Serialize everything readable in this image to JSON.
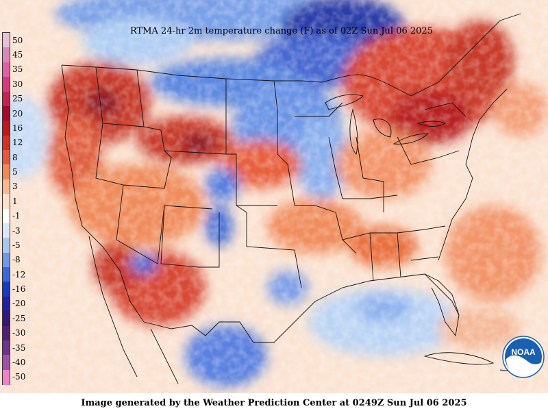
{
  "title": "RTMA 24-hr 2m temperature change (F) as of 02Z Sun Jul 06 2025",
  "footer": "Image generated by the Weather Prediction Center at 0249Z Sun Jul 06 2025",
  "logo_text": "NOAA",
  "legend": {
    "labels": [
      "50",
      "45",
      "35",
      "30",
      "25",
      "20",
      "16",
      "12",
      "8",
      "5",
      "3",
      "1",
      "-1",
      "-3",
      "-5",
      "-8",
      "-12",
      "-16",
      "-20",
      "-25",
      "-30",
      "-35",
      "-40",
      "-50"
    ],
    "colors": [
      "#e8c0d8",
      "#d888c0",
      "#e060a8",
      "#d83880",
      "#c82050",
      "#a80828",
      "#c01818",
      "#d83020",
      "#e85838",
      "#f08858",
      "#f8b890",
      "#fde0c8",
      "#ffffff",
      "#d8e8f8",
      "#a8c8f0",
      "#7098e8",
      "#3868e0",
      "#1838c8",
      "#2020a0",
      "#301878",
      "#502070",
      "#703090",
      "#a050a8",
      "#f080c8"
    ]
  },
  "colors": {
    "warm_strong": "#b82020",
    "warm": "#e8603c",
    "warm_light": "#f4a07a",
    "cool_light": "#a8c8f0",
    "cool": "#4070e0",
    "cool_strong": "#1838b8",
    "noaa_blue": "#1a5fb4"
  }
}
